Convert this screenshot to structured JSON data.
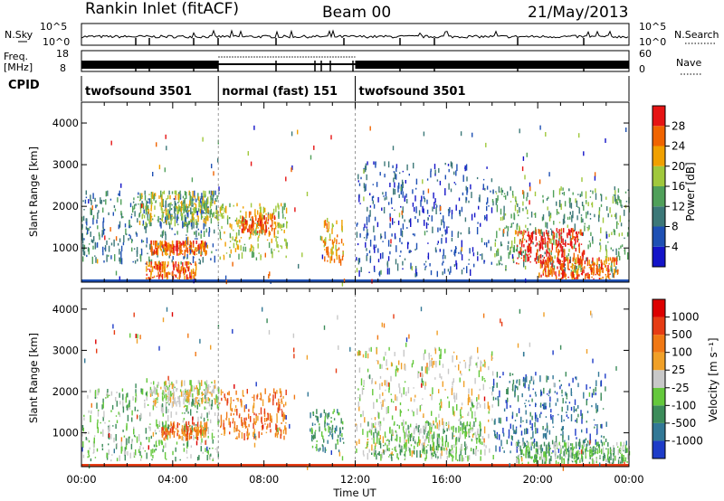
{
  "header": {
    "station": "Rankin Inlet (fitACF)",
    "beam": "Beam 00",
    "date": "21/May/2013"
  },
  "strips": {
    "nsky_label": "N.Sky",
    "nsearch_label": "N.Search",
    "nsky_ticks": [
      "10^5",
      "10^0"
    ],
    "nsearch_ticks": [
      "10^5",
      "10^0"
    ],
    "freq_label": "Freq.",
    "freq_unit": "[MHz]",
    "freq_ticks": [
      "18",
      "8"
    ],
    "nave_label": "Nave",
    "nave_ticks": [
      "60",
      "0"
    ],
    "cpid_label": "CPID"
  },
  "modes": [
    {
      "name": "twofsound 3501",
      "start_hour": 0,
      "end_hour": 6
    },
    {
      "name": "normal (fast) 151",
      "start_hour": 6,
      "end_hour": 12
    },
    {
      "name": "twofsound 3501",
      "start_hour": 12,
      "end_hour": 24
    }
  ],
  "axes": {
    "ylabel": "Slant Range [km]",
    "xlabel": "Time UT",
    "yticks": [
      "1000",
      "2000",
      "3000",
      "4000"
    ],
    "xticks": [
      "00:00",
      "04:00",
      "08:00",
      "12:00",
      "16:00",
      "20:00",
      "00:00"
    ]
  },
  "power_colorbar": {
    "label": "Power [dB]",
    "ticks": [
      "4",
      "8",
      "12",
      "16",
      "20",
      "24",
      "28"
    ],
    "colors": [
      "#1414c8",
      "#1e50b4",
      "#3c7878",
      "#50a05a",
      "#a0c83c",
      "#f0a000",
      "#f06400",
      "#e61414"
    ]
  },
  "velocity_colorbar": {
    "label": "Velocity [m s⁻¹]",
    "ticks": [
      "1000",
      "500",
      "100",
      "25",
      "-25",
      "-100",
      "-500",
      "-1000"
    ],
    "colors": [
      "#1e3cc8",
      "#327896",
      "#3c8c5a",
      "#64c83c",
      "#c8c8c8",
      "#f0a028",
      "#f07814",
      "#e63c14",
      "#dc0000"
    ]
  },
  "chart_data": [
    {
      "type": "heatmap",
      "panel": "power",
      "xlabel": "Time UT",
      "ylabel": "Slant Range [km]",
      "xlim_hours": [
        0,
        24
      ],
      "ylim_km": [
        180,
        4500
      ],
      "colorbar_label": "Power [dB]",
      "regions": [
        {
          "t0": 0.0,
          "t1": 6.0,
          "r0": 600,
          "r1": 2300,
          "level": 2
        },
        {
          "t0": 2.5,
          "t1": 6.0,
          "r0": 1500,
          "r1": 2300,
          "level": 4
        },
        {
          "t0": 3.0,
          "t1": 5.5,
          "r0": 800,
          "r1": 1100,
          "level": 6
        },
        {
          "t0": 2.8,
          "t1": 5.0,
          "r0": 200,
          "r1": 600,
          "level": 6
        },
        {
          "t0": 6.0,
          "t1": 9.0,
          "r0": 700,
          "r1": 2000,
          "level": 4
        },
        {
          "t0": 7.0,
          "t1": 8.5,
          "r0": 1300,
          "r1": 1800,
          "level": 6
        },
        {
          "t0": 10.5,
          "t1": 11.5,
          "r0": 500,
          "r1": 1600,
          "level": 5
        },
        {
          "t0": 12.0,
          "t1": 18.0,
          "r0": 300,
          "r1": 3000,
          "level": 1
        },
        {
          "t0": 18.0,
          "t1": 24.0,
          "r0": 400,
          "r1": 2400,
          "level": 3
        },
        {
          "t0": 19.0,
          "t1": 22.0,
          "r0": 600,
          "r1": 1400,
          "level": 7
        },
        {
          "t0": 20.0,
          "t1": 23.5,
          "r0": 200,
          "r1": 700,
          "level": 6
        }
      ]
    },
    {
      "type": "heatmap",
      "panel": "velocity",
      "xlabel": "Time UT",
      "ylabel": "Slant Range [km]",
      "xlim_hours": [
        0,
        24
      ],
      "ylim_km": [
        180,
        4500
      ],
      "colorbar_label": "Velocity [m s⁻¹]",
      "regions": [
        {
          "t0": 0.0,
          "t1": 6.0,
          "r0": 300,
          "r1": 2000,
          "level": 5
        },
        {
          "t0": 3.0,
          "t1": 6.0,
          "r0": 1600,
          "r1": 2200,
          "level": 4
        },
        {
          "t0": 3.5,
          "t1": 5.5,
          "r0": 800,
          "r1": 1200,
          "level": 2
        },
        {
          "t0": 6.0,
          "t1": 9.0,
          "r0": 800,
          "r1": 2000,
          "level": 2
        },
        {
          "t0": 10.0,
          "t1": 11.5,
          "r0": 500,
          "r1": 1500,
          "level": 6
        },
        {
          "t0": 12.0,
          "t1": 18.0,
          "r0": 400,
          "r1": 3000,
          "level": 4
        },
        {
          "t0": 12.5,
          "t1": 17.5,
          "r0": 300,
          "r1": 1200,
          "level": 5
        },
        {
          "t0": 18.0,
          "t1": 23.0,
          "r0": 500,
          "r1": 2400,
          "level": 7
        },
        {
          "t0": 19.0,
          "t1": 24.0,
          "r0": 200,
          "r1": 700,
          "level": 5
        }
      ]
    }
  ]
}
